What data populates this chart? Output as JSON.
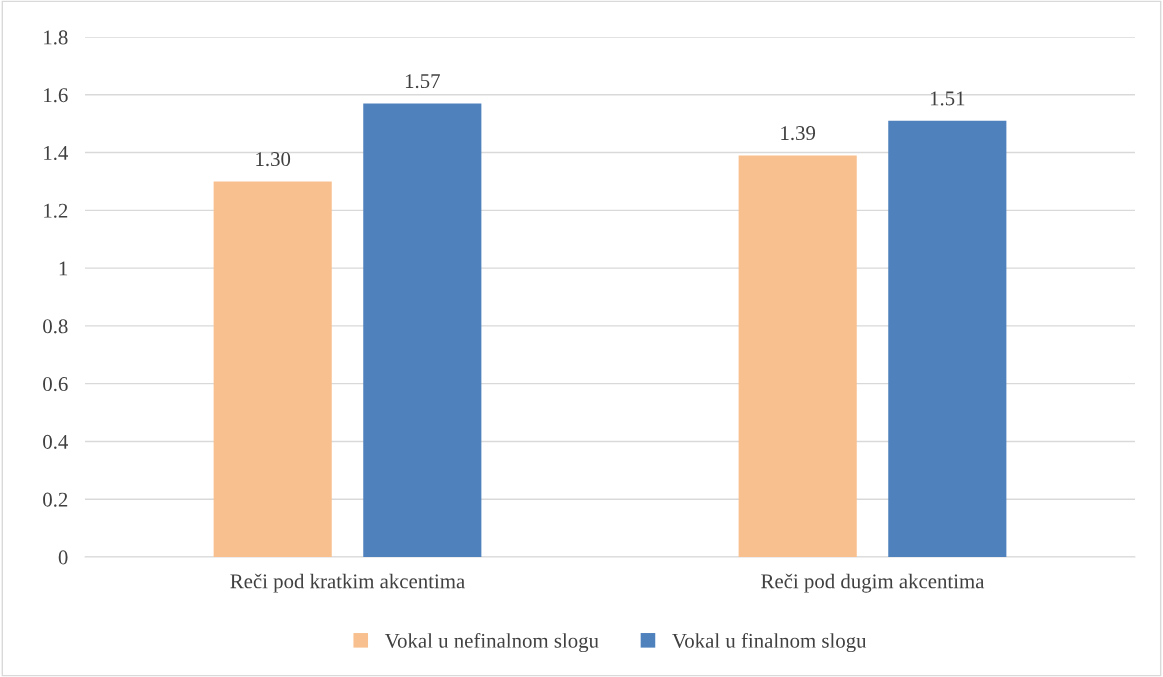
{
  "chart_data": {
    "type": "bar",
    "categories": [
      "Reči pod kratkim akcentima",
      "Reči pod dugim akcentima"
    ],
    "series": [
      {
        "name": "Vokal u nefinalnom slogu",
        "color": "#f9c08f",
        "values": [
          1.3,
          1.39
        ],
        "value_labels": [
          "1.30",
          "1.39"
        ]
      },
      {
        "name": "Vokal u finalnom slogu",
        "color": "#4f81bd",
        "values": [
          1.57,
          1.51
        ],
        "value_labels": [
          "1.57",
          "1.51"
        ]
      }
    ],
    "ylim": [
      0,
      1.8
    ],
    "yticks": [
      0,
      0.2,
      0.4,
      0.6,
      0.8,
      1,
      1.2,
      1.4,
      1.6,
      1.8
    ],
    "grid": "y",
    "legend": "bottom"
  }
}
